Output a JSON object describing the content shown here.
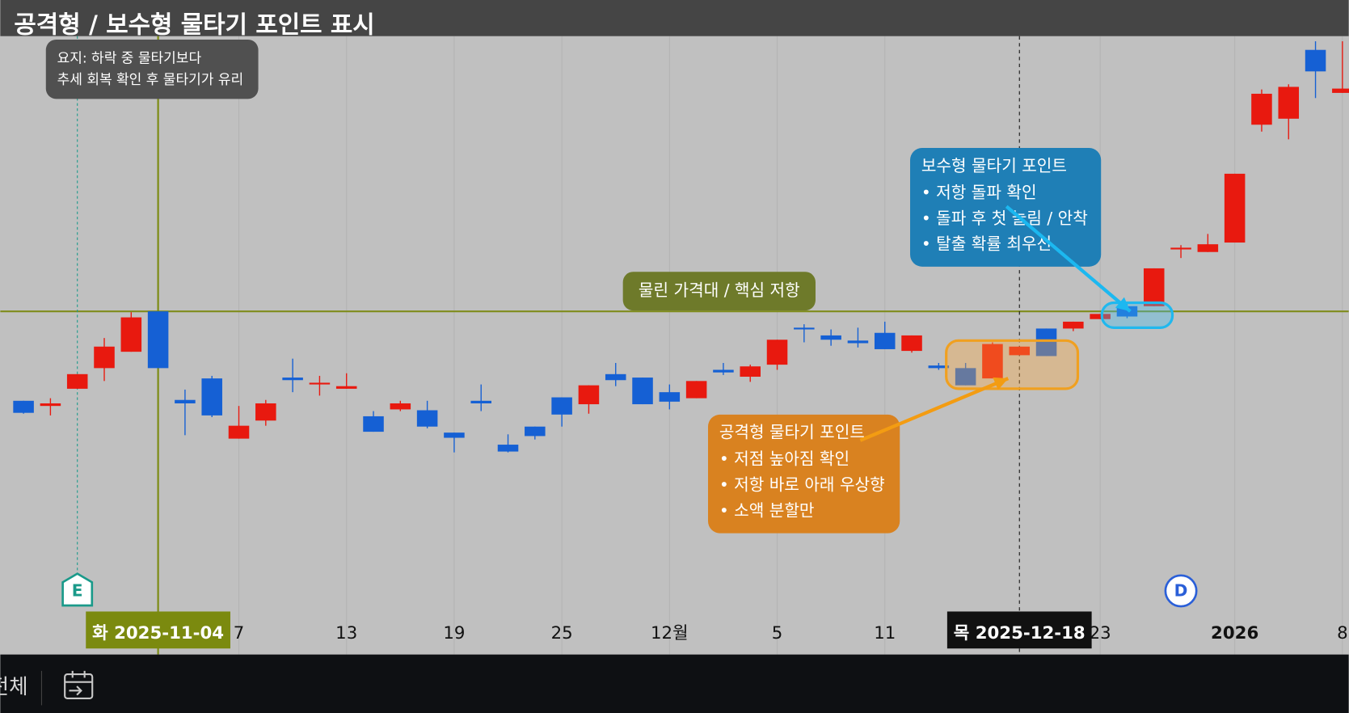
{
  "chart_data": {
    "type": "candlestick",
    "title": "공격형 / 보수형 물타기 포인트 표시",
    "note": [
      "요지: 하락 중 물타기보다",
      "추세 회복 확인 후 물타기가 유리"
    ],
    "categories": [
      null,
      null,
      null,
      null,
      null,
      "화 2025-11-04",
      null,
      null,
      "7",
      null,
      null,
      null,
      "13",
      null,
      null,
      null,
      "19",
      null,
      null,
      null,
      "25",
      null,
      null,
      null,
      "12월",
      null,
      null,
      null,
      "5",
      null,
      null,
      null,
      "11",
      null,
      null,
      null,
      null,
      "목 2025-12-18",
      null,
      null,
      "23",
      null,
      null,
      null,
      null,
      "2026",
      null,
      null,
      null,
      "8"
    ],
    "open": [
      295,
      289,
      309,
      333,
      352,
      399,
      296,
      321,
      251,
      272,
      322,
      314,
      309,
      277,
      285,
      284,
      258,
      295,
      244,
      265,
      299,
      291,
      326,
      322,
      305,
      298,
      331,
      323,
      337,
      380,
      371,
      365,
      374,
      353,
      336,
      333,
      321,
      348,
      379,
      379,
      390,
      405,
      405,
      471,
      468,
      479,
      616,
      623,
      703,
      653
    ],
    "high": [
      295,
      298,
      326,
      368,
      398,
      399,
      308,
      324,
      289,
      296,
      344,
      324,
      327,
      283,
      295,
      295,
      258,
      314,
      256,
      265,
      299,
      313,
      339,
      322,
      314,
      318,
      339,
      337,
      366,
      384,
      378,
      380,
      387,
      371,
      339,
      339,
      363,
      358,
      379,
      387,
      396,
      409,
      449,
      476,
      489,
      559,
      657,
      663,
      713,
      713
    ],
    "low": [
      280,
      278,
      309,
      318,
      352,
      333,
      255,
      276,
      251,
      266,
      305,
      301,
      309,
      259,
      283,
      263,
      235,
      283,
      235,
      250,
      265,
      280,
      312,
      291,
      285,
      298,
      325,
      317,
      331,
      363,
      359,
      357,
      355,
      351,
      331,
      313,
      321,
      348,
      347,
      376,
      390,
      391,
      405,
      461,
      468,
      479,
      608,
      599,
      647,
      653
    ],
    "close": [
      281,
      292,
      326,
      358,
      392,
      333,
      292,
      278,
      266,
      292,
      319,
      316,
      312,
      259,
      292,
      265,
      252,
      292,
      236,
      254,
      279,
      313,
      319,
      291,
      294,
      318,
      328,
      335,
      366,
      378,
      366,
      362,
      355,
      371,
      333,
      313,
      361,
      358,
      347,
      387,
      396,
      393,
      449,
      473,
      477,
      559,
      652,
      660,
      678,
      658
    ],
    "up_color": "#e8190f",
    "down_color": "#1560d4",
    "ylim": [
      0,
      719
    ],
    "resistance": {
      "value": 399,
      "label": "물린 가격대 / 핵심 저항",
      "color": "#7f8c1c"
    },
    "crosshairs": [
      {
        "index": 5,
        "color": "#7b8a0f"
      },
      {
        "index": 37,
        "color": "#111111"
      }
    ],
    "events": [
      {
        "label": "E",
        "index": 2,
        "color": "#1a9a8a"
      },
      {
        "label": "D",
        "index": 43,
        "color": "#2a5fd8"
      }
    ],
    "conservative": {
      "title": "보수형 물타기 포인트",
      "items": [
        "• 저항 돌파 확인",
        "• 돌파 후 첫 눌림 / 안착",
        "• 탈출 확률 최우선"
      ],
      "color": "#1f7fb6"
    },
    "aggressive": {
      "title": "공격형 물타기 포인트",
      "items": [
        "• 저점 높아짐 확인",
        "• 저항 바로 아래 우상향",
        "• 소액 분할만"
      ],
      "color": "#d98220"
    }
  },
  "toolbar": {
    "range_label": "전체"
  }
}
